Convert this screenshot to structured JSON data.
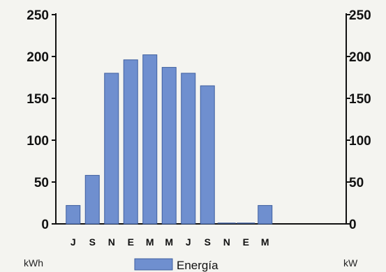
{
  "chart_data": {
    "type": "bar",
    "categories": [
      "J",
      "S",
      "N",
      "E",
      "M",
      "M",
      "J",
      "S",
      "N",
      "E",
      "M"
    ],
    "series": [
      {
        "name": "Energía",
        "values": [
          22,
          58,
          180,
          196,
          202,
          187,
          180,
          165,
          0,
          0,
          22
        ]
      }
    ],
    "ylim": [
      0,
      250
    ],
    "y_ticks": [
      0,
      50,
      100,
      150,
      200,
      250
    ],
    "y_right_ticks": [
      0,
      50,
      100,
      150,
      200,
      250
    ],
    "y_left_unit": "kWh",
    "y_right_unit": "kW",
    "grid": false,
    "legend_position": "bottom",
    "colors": {
      "bar_fill": "#6f8fcf",
      "bar_stroke": "#3f5f9f",
      "axis": "#111111"
    }
  }
}
